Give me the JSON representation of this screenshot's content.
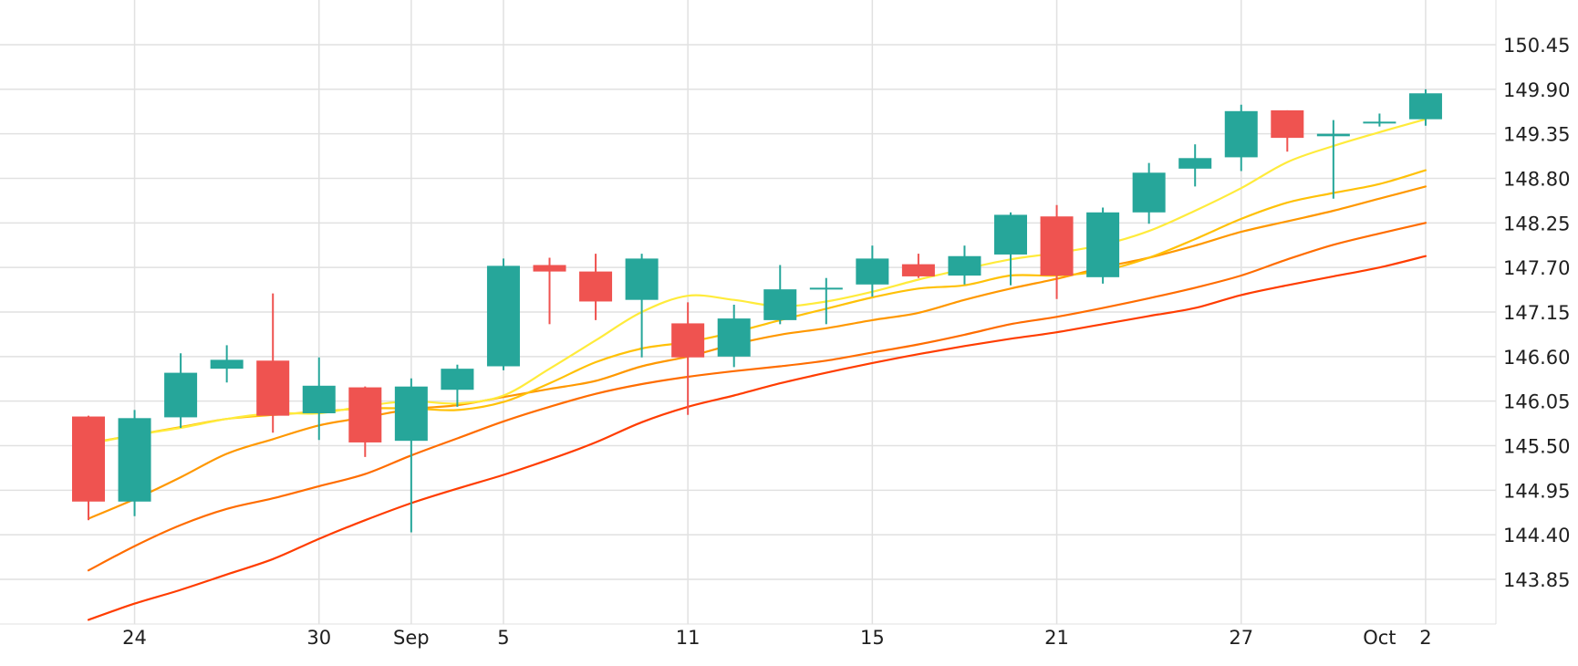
{
  "chart_data": {
    "type": "candlestick",
    "title": "",
    "grid": true,
    "colors": {
      "up": "#26a69a",
      "down": "#ef5350",
      "grid": "#e1e1e1",
      "ma_series": [
        "#ffeb3b",
        "#ffc107",
        "#ff9800",
        "#ff6d00",
        "#ff3d00"
      ]
    },
    "y_axis": {
      "position": "right",
      "ticks": [
        "150.45",
        "149.90",
        "149.35",
        "148.80",
        "148.25",
        "147.70",
        "147.15",
        "146.60",
        "146.05",
        "145.50",
        "144.95",
        "144.40",
        "143.85"
      ],
      "range": [
        143.3,
        150.75
      ]
    },
    "x_axis": {
      "ticks": [
        {
          "label": "24",
          "bar": 1
        },
        {
          "label": "30",
          "bar": 5
        },
        {
          "label": "Sep",
          "bar": 7
        },
        {
          "label": "5",
          "bar": 9
        },
        {
          "label": "11",
          "bar": 13
        },
        {
          "label": "15",
          "bar": 17
        },
        {
          "label": "21",
          "bar": 21
        },
        {
          "label": "27",
          "bar": 25
        },
        {
          "label": "Oct",
          "bar": 28
        },
        {
          "label": "2",
          "bar": 29
        }
      ],
      "gridlines_at_bars": [
        1,
        5,
        7,
        9,
        13,
        17,
        21,
        25,
        29
      ]
    },
    "candles": [
      {
        "o": 145.86,
        "h": 145.87,
        "l": 144.58,
        "c": 144.81
      },
      {
        "o": 144.81,
        "h": 145.94,
        "l": 144.63,
        "c": 145.84
      },
      {
        "o": 145.85,
        "h": 146.64,
        "l": 145.72,
        "c": 146.4
      },
      {
        "o": 146.45,
        "h": 146.74,
        "l": 146.28,
        "c": 146.56
      },
      {
        "o": 146.55,
        "h": 147.38,
        "l": 145.66,
        "c": 145.87
      },
      {
        "o": 145.9,
        "h": 146.59,
        "l": 145.57,
        "c": 146.24
      },
      {
        "o": 146.22,
        "h": 146.23,
        "l": 145.36,
        "c": 145.54
      },
      {
        "o": 145.56,
        "h": 146.33,
        "l": 144.43,
        "c": 146.23
      },
      {
        "o": 146.19,
        "h": 146.5,
        "l": 145.98,
        "c": 146.45
      },
      {
        "o": 146.48,
        "h": 147.81,
        "l": 146.43,
        "c": 147.72
      },
      {
        "o": 147.73,
        "h": 147.82,
        "l": 147.0,
        "c": 147.65
      },
      {
        "o": 147.65,
        "h": 147.87,
        "l": 147.05,
        "c": 147.28
      },
      {
        "o": 147.3,
        "h": 147.87,
        "l": 146.59,
        "c": 147.81
      },
      {
        "o": 147.01,
        "h": 147.27,
        "l": 145.88,
        "c": 146.59
      },
      {
        "o": 146.6,
        "h": 147.24,
        "l": 146.47,
        "c": 147.07
      },
      {
        "o": 147.05,
        "h": 147.73,
        "l": 147.0,
        "c": 147.43
      },
      {
        "o": 147.44,
        "h": 147.57,
        "l": 147.0,
        "c": 147.45
      },
      {
        "o": 147.49,
        "h": 147.97,
        "l": 147.34,
        "c": 147.81
      },
      {
        "o": 147.74,
        "h": 147.87,
        "l": 147.57,
        "c": 147.59
      },
      {
        "o": 147.6,
        "h": 147.97,
        "l": 147.49,
        "c": 147.84
      },
      {
        "o": 147.86,
        "h": 148.38,
        "l": 147.48,
        "c": 148.35
      },
      {
        "o": 148.33,
        "h": 148.47,
        "l": 147.31,
        "c": 147.6
      },
      {
        "o": 147.58,
        "h": 148.44,
        "l": 147.5,
        "c": 148.38
      },
      {
        "o": 148.38,
        "h": 148.99,
        "l": 148.24,
        "c": 148.87
      },
      {
        "o": 148.92,
        "h": 149.22,
        "l": 148.7,
        "c": 149.05
      },
      {
        "o": 149.06,
        "h": 149.71,
        "l": 148.89,
        "c": 149.63
      },
      {
        "o": 149.64,
        "h": 149.64,
        "l": 149.13,
        "c": 149.3
      },
      {
        "o": 149.32,
        "h": 149.52,
        "l": 148.55,
        "c": 149.35
      },
      {
        "o": 149.5,
        "h": 149.6,
        "l": 149.44,
        "c": 149.5
      },
      {
        "o": 149.53,
        "h": 149.9,
        "l": 149.45,
        "c": 149.85
      }
    ],
    "moving_averages": [
      {
        "color": "#ffeb3b",
        "start_bar": 0,
        "values": [
          145.52,
          145.63,
          145.72,
          145.83,
          145.9,
          145.9,
          145.99,
          146.05,
          146.02,
          146.12,
          146.45,
          146.8,
          147.15,
          147.35,
          147.3,
          147.22,
          147.28,
          147.4,
          147.55,
          147.68,
          147.8,
          147.88,
          147.98,
          148.15,
          148.4,
          148.68,
          149.0,
          149.2,
          149.37,
          149.53
        ]
      },
      {
        "color": "#ffc107",
        "start_bar": 0,
        "values": [
          145.53,
          145.63,
          145.73,
          145.83,
          145.88,
          145.92,
          145.96,
          145.96,
          145.94,
          146.04,
          146.27,
          146.53,
          146.7,
          146.78,
          146.9,
          147.05,
          147.19,
          147.33,
          147.44,
          147.48,
          147.6,
          147.6,
          147.66,
          147.82,
          148.05,
          148.3,
          148.5,
          148.62,
          148.73,
          148.9
        ]
      },
      {
        "color": "#ff9800",
        "start_bar": 0,
        "values": [
          144.6,
          144.84,
          145.11,
          145.4,
          145.58,
          145.75,
          145.85,
          145.95,
          146.0,
          146.1,
          146.2,
          146.3,
          146.48,
          146.6,
          146.75,
          146.87,
          146.95,
          147.05,
          147.14,
          147.3,
          147.44,
          147.56,
          147.7,
          147.82,
          147.97,
          148.14,
          148.27,
          148.4,
          148.55,
          148.7
        ]
      },
      {
        "color": "#ff6d00",
        "start_bar": 0,
        "values": [
          143.96,
          144.26,
          144.52,
          144.72,
          144.85,
          145.0,
          145.15,
          145.38,
          145.59,
          145.8,
          145.98,
          146.14,
          146.26,
          146.35,
          146.42,
          146.48,
          146.55,
          146.65,
          146.75,
          146.87,
          147.0,
          147.09,
          147.2,
          147.32,
          147.45,
          147.6,
          147.8,
          147.98,
          148.12,
          148.25
        ]
      },
      {
        "color": "#ff3d00",
        "start_bar": 0,
        "values": [
          143.35,
          143.55,
          143.72,
          143.91,
          144.1,
          144.35,
          144.58,
          144.79,
          144.97,
          145.14,
          145.33,
          145.54,
          145.79,
          145.98,
          146.12,
          146.27,
          146.4,
          146.52,
          146.63,
          146.73,
          146.82,
          146.9,
          147.0,
          147.1,
          147.2,
          147.36,
          147.48,
          147.59,
          147.7,
          147.84
        ]
      }
    ]
  }
}
